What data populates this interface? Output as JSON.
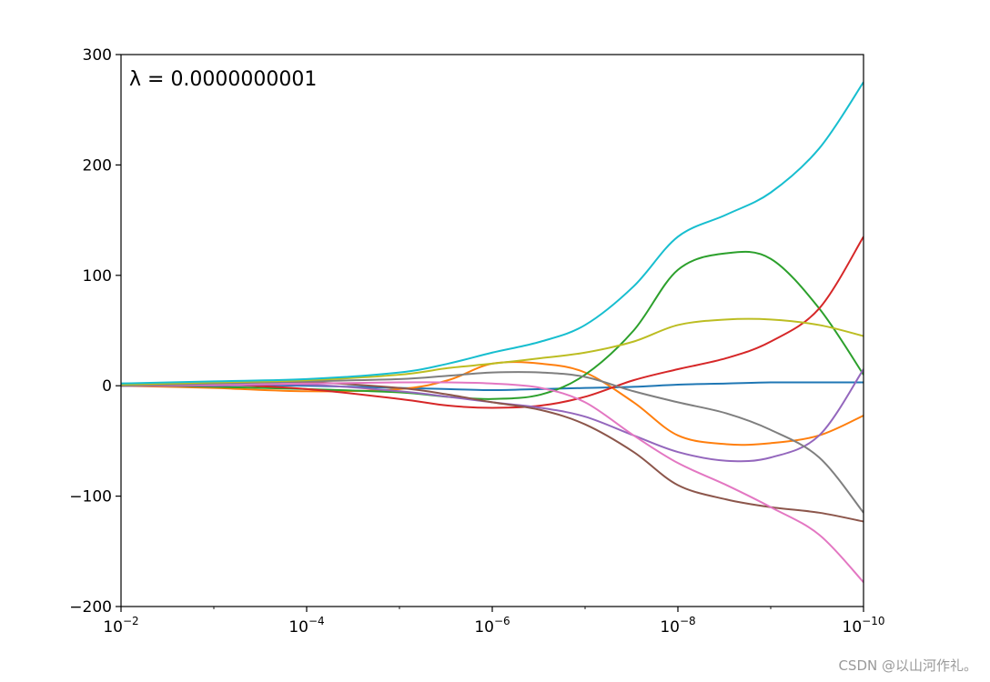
{
  "chart_data": {
    "type": "line",
    "annotation": "λ = 0.0000000001",
    "xscale": "log",
    "x_inverted": true,
    "xlim": [
      0.01,
      1e-10
    ],
    "ylim": [
      -200,
      300
    ],
    "xtick_labels": [
      "10",
      "10",
      "10",
      "10",
      "10"
    ],
    "xtick_exponents": [
      "−2",
      "−4",
      "−6",
      "−8",
      "−10"
    ],
    "ytick_labels": [
      "300",
      "200",
      "100",
      "0",
      "−100",
      "−200"
    ],
    "ytick_values": [
      300,
      200,
      100,
      0,
      -100,
      -200
    ],
    "grid": false,
    "x": [
      0.01,
      0.001,
      0.0001,
      1e-05,
      3e-06,
      1e-06,
      3e-07,
      1e-07,
      3e-08,
      1e-08,
      3e-09,
      1e-09,
      3e-10,
      1e-10
    ],
    "series": [
      {
        "color": "#1f77b4",
        "values": [
          2,
          1,
          0,
          -2,
          -3,
          -4,
          -3,
          -2,
          -1,
          1,
          2,
          3,
          3,
          3
        ]
      },
      {
        "color": "#ff7f0e",
        "values": [
          0,
          -2,
          -5,
          -3,
          5,
          20,
          20,
          12,
          -15,
          -45,
          -53,
          -52,
          -45,
          -27
        ]
      },
      {
        "color": "#2ca02c",
        "values": [
          1,
          -1,
          -3,
          -6,
          -10,
          -12,
          -8,
          10,
          50,
          105,
          120,
          115,
          70,
          10
        ]
      },
      {
        "color": "#d62728",
        "values": [
          0,
          1,
          -3,
          -12,
          -18,
          -20,
          -18,
          -10,
          5,
          15,
          25,
          40,
          70,
          135
        ]
      },
      {
        "color": "#9467bd",
        "values": [
          0,
          0,
          1,
          -5,
          -10,
          -15,
          -20,
          -28,
          -45,
          -60,
          -68,
          -65,
          -45,
          15
        ]
      },
      {
        "color": "#8c564b",
        "values": [
          0,
          1,
          3,
          -2,
          -8,
          -15,
          -22,
          -35,
          -60,
          -90,
          -103,
          -110,
          -115,
          -123
        ]
      },
      {
        "color": "#e377c2",
        "values": [
          0,
          1,
          2,
          3,
          3,
          2,
          -2,
          -15,
          -45,
          -70,
          -90,
          -110,
          -135,
          -178
        ]
      },
      {
        "color": "#7f7f7f",
        "values": [
          0,
          2,
          4,
          6,
          9,
          12,
          12,
          8,
          -5,
          -15,
          -25,
          -40,
          -65,
          -115
        ]
      },
      {
        "color": "#bcbd22",
        "values": [
          1,
          3,
          5,
          10,
          16,
          20,
          25,
          30,
          40,
          55,
          60,
          60,
          55,
          45
        ]
      },
      {
        "color": "#17becf",
        "values": [
          2,
          4,
          6,
          12,
          20,
          30,
          40,
          55,
          90,
          135,
          155,
          175,
          215,
          275
        ]
      }
    ]
  },
  "watermark": "CSDN @以山河作礼。"
}
